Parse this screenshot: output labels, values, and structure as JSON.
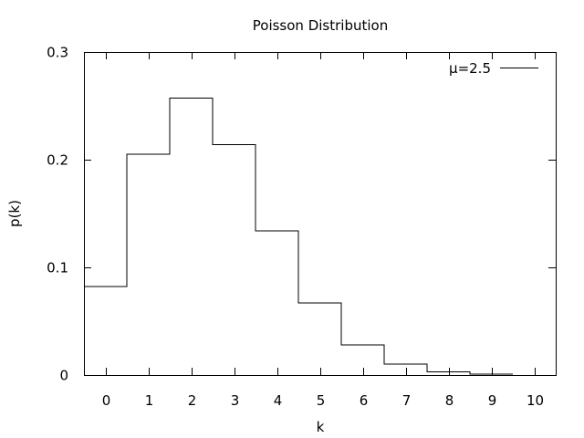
{
  "chart_data": {
    "type": "line",
    "title": "Poisson Distribution",
    "xlabel": "k",
    "ylabel": "p(k)",
    "xlim": [
      -0.5,
      10.5
    ],
    "ylim": [
      0,
      0.3
    ],
    "x_ticks": [
      "0",
      "1",
      "2",
      "3",
      "4",
      "5",
      "6",
      "7",
      "8",
      "9",
      "10"
    ],
    "y_ticks": [
      "0",
      "0.1",
      "0.2",
      "0.3"
    ],
    "grid": false,
    "legend_position": "top-right",
    "step": "mid",
    "series": [
      {
        "name": "μ=2.5",
        "color": "#000000",
        "x": [
          0,
          1,
          2,
          3,
          4,
          5,
          6,
          7,
          8,
          9
        ],
        "y": [
          0.082,
          0.205,
          0.257,
          0.214,
          0.134,
          0.067,
          0.028,
          0.01,
          0.003,
          0.001
        ]
      }
    ]
  }
}
